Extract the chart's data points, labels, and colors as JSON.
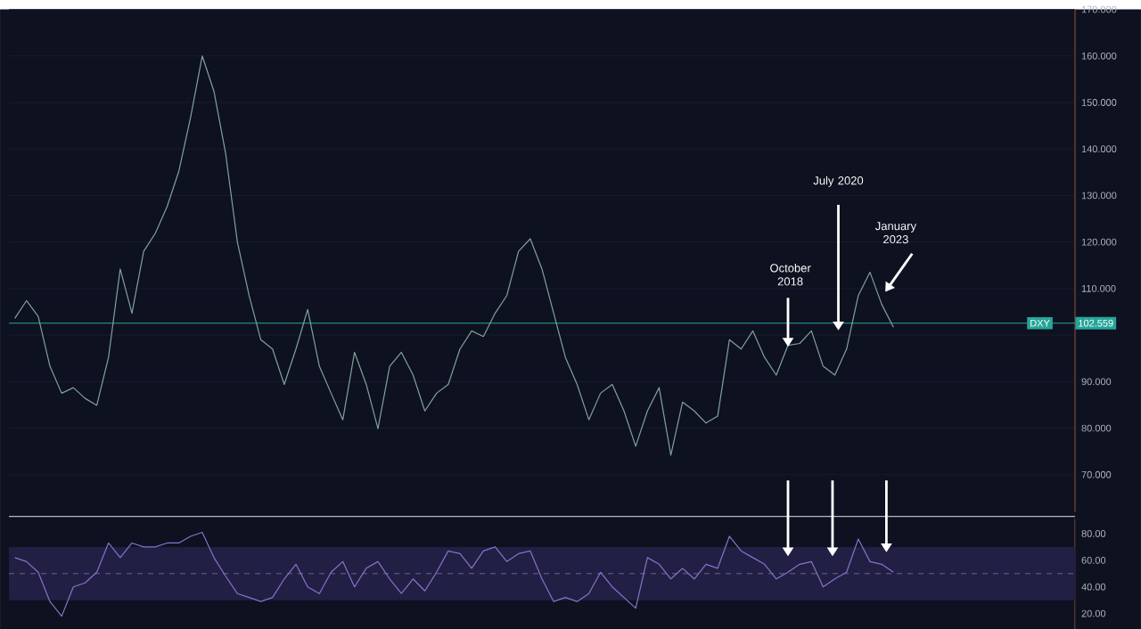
{
  "chart_data": [
    {
      "type": "line",
      "categories": [
        null,
        null,
        null,
        null,
        null,
        null,
        null,
        null,
        null,
        null,
        null,
        null,
        null,
        null,
        null,
        null,
        null,
        null,
        null,
        null,
        null,
        null,
        null,
        null,
        null,
        null,
        null,
        null,
        null,
        null,
        null,
        null,
        null,
        null,
        null,
        null,
        null,
        null,
        null,
        null,
        null,
        null,
        null,
        null,
        null,
        null,
        null,
        null,
        null,
        null,
        null,
        null,
        null,
        null,
        null,
        null,
        null,
        null,
        null,
        null,
        null,
        null,
        null,
        null,
        null,
        null,
        null,
        null,
        null,
        null,
        null,
        null,
        null,
        null,
        null,
        null,
        null,
        null,
        null,
        null,
        null,
        null,
        null,
        null,
        null,
        null,
        null,
        null,
        null,
        null,
        null
      ],
      "series": [
        {
          "color": "#7fa39a",
          "values": [
            103.6,
            107.4,
            104,
            93.3,
            87.5,
            88.7,
            86.4,
            84.9,
            95.2,
            114.2,
            104.7,
            118,
            121.9,
            127.6,
            135.2,
            146.7,
            160,
            152.4,
            139,
            120,
            108.5,
            99,
            97,
            89.4,
            97,
            105.5,
            93.3,
            87.5,
            81.8,
            96.3,
            89.4,
            79.9,
            93.3,
            96.3,
            91.4,
            83.7,
            87.5,
            89.4,
            97,
            100.9,
            99.7,
            104.7,
            108.5,
            118,
            120.7,
            114.2,
            104.7,
            95.2,
            89.4,
            81.8,
            87.5,
            89.4,
            83.7,
            76.1,
            83.7,
            88.7,
            74.2,
            85.6,
            83.7,
            81.1,
            82.6,
            99,
            97,
            100.9,
            95.2,
            91.4,
            97.8,
            98.2,
            100.9,
            93.3,
            91.4,
            97,
            108.5,
            113.5,
            106.6,
            101.7,
            null,
            null,
            null,
            null,
            null,
            null,
            null,
            null,
            null,
            null,
            null,
            null,
            null,
            null,
            null
          ]
        }
      ],
      "ylim": [
        62,
        170
      ],
      "yticks": [
        {
          "value": 70,
          "label": "70.000"
        },
        {
          "value": 80,
          "label": "80.000"
        },
        {
          "value": 90,
          "label": "90.000"
        },
        {
          "value": 100,
          "label": null
        },
        {
          "value": 110,
          "label": "110.000"
        },
        {
          "value": 120,
          "label": "120.000"
        },
        {
          "value": 130,
          "label": "130.000"
        },
        {
          "value": 140,
          "label": "140.000"
        },
        {
          "value": 150,
          "label": "150.000"
        },
        {
          "value": 160,
          "label": "160.000"
        },
        {
          "value": 170,
          "label": "170.000"
        }
      ],
      "grid": "y",
      "tick_labels": "y",
      "ref_lines": [
        {
          "axis": "y",
          "value": 102.559,
          "label": "102.559",
          "color": "#26a69a"
        }
      ],
      "annotations": [
        "October 2018",
        "July 2020",
        "January 2023",
        "DXY"
      ]
    },
    {
      "type": "line",
      "categories": [
        null,
        null,
        null,
        null,
        null,
        null,
        null,
        null,
        null,
        null,
        null,
        null,
        null,
        null,
        null,
        null,
        null,
        null,
        null,
        null,
        null,
        null,
        null,
        null,
        null,
        null,
        null,
        null,
        null,
        null,
        null,
        null,
        null,
        null,
        null,
        null,
        null,
        null,
        null,
        null,
        null,
        null,
        null,
        null,
        null,
        null,
        null,
        null,
        null,
        null,
        null,
        null,
        null,
        null,
        null,
        null,
        null,
        null,
        null,
        null,
        null,
        null,
        null,
        null,
        null,
        null,
        null,
        null,
        null,
        null,
        null,
        null,
        null,
        null,
        null,
        null,
        null,
        null,
        null,
        null,
        null,
        null,
        null,
        null,
        null,
        null,
        null,
        null,
        null,
        null,
        null
      ],
      "series": [
        {
          "color": "#8275c8",
          "values": [
            62,
            59,
            51,
            29,
            18,
            40,
            43,
            51,
            73,
            62,
            73,
            70,
            70,
            73,
            73,
            78,
            81,
            62,
            48,
            35,
            32,
            29,
            32,
            46,
            57,
            40,
            35,
            51,
            59,
            40,
            54,
            59,
            46,
            35,
            46,
            37,
            51,
            67,
            65,
            54,
            67,
            70,
            59,
            65,
            67,
            46,
            29,
            32,
            29,
            35,
            51,
            40,
            32,
            24,
            62,
            57,
            46,
            54,
            46,
            57,
            54,
            78,
            67,
            62,
            57,
            46,
            51,
            57,
            59,
            40,
            46,
            51,
            76,
            59,
            57,
            51,
            null,
            null,
            null,
            null,
            null,
            null,
            null,
            null,
            null,
            null,
            null,
            null,
            null,
            null,
            null
          ]
        }
      ],
      "ylim": [
        8,
        91
      ],
      "yticks": [
        {
          "value": 20,
          "label": "20.00"
        },
        {
          "value": 40,
          "label": "40.00"
        },
        {
          "value": 60,
          "label": "60.00"
        },
        {
          "value": 80,
          "label": "80.00"
        }
      ],
      "tick_labels": "y",
      "bands": [
        {
          "axis": "y",
          "from": 30,
          "to": 70,
          "color": "#221f45"
        }
      ],
      "ref_lines": [
        {
          "axis": "y",
          "value": 50,
          "color": "#6a6590",
          "line_style": "dashed"
        }
      ]
    }
  ]
}
